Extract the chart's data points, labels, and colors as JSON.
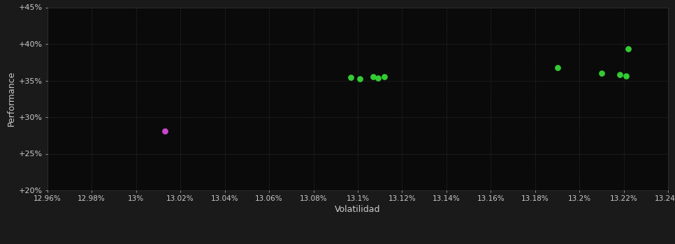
{
  "background_color": "#1a1a1a",
  "plot_bg_color": "#0a0a0a",
  "grid_color": "#3a3a3a",
  "grid_style": ":",
  "xlabel": "Volatilidad",
  "ylabel": "Performance",
  "xlabel_color": "#cccccc",
  "ylabel_color": "#cccccc",
  "tick_color": "#cccccc",
  "xlim": [
    12.96,
    13.24
  ],
  "ylim": [
    20.0,
    45.0
  ],
  "xtick_labels": [
    "12.96%",
    "12.98%",
    "13%",
    "13.02%",
    "13.04%",
    "13.06%",
    "13.08%",
    "13.1%",
    "13.12%",
    "13.14%",
    "13.16%",
    "13.18%",
    "13.2%",
    "13.22%",
    "13.24%"
  ],
  "xtick_values": [
    12.96,
    12.98,
    13.0,
    13.02,
    13.04,
    13.06,
    13.08,
    13.1,
    13.12,
    13.14,
    13.16,
    13.18,
    13.2,
    13.22,
    13.24
  ],
  "ytick_labels": [
    "+20%",
    "+25%",
    "+30%",
    "+35%",
    "+40%",
    "+45%"
  ],
  "ytick_values": [
    20,
    25,
    30,
    35,
    40,
    45
  ],
  "green_points": [
    [
      13.097,
      35.4
    ],
    [
      13.101,
      35.2
    ],
    [
      13.107,
      35.5
    ],
    [
      13.109,
      35.3
    ],
    [
      13.112,
      35.5
    ],
    [
      13.19,
      36.8
    ],
    [
      13.21,
      36.0
    ],
    [
      13.218,
      35.8
    ],
    [
      13.221,
      35.65
    ],
    [
      13.222,
      39.3
    ]
  ],
  "magenta_points": [
    [
      13.013,
      28.1
    ]
  ],
  "green_color": "#33cc33",
  "magenta_color": "#cc44cc",
  "point_size": 28
}
